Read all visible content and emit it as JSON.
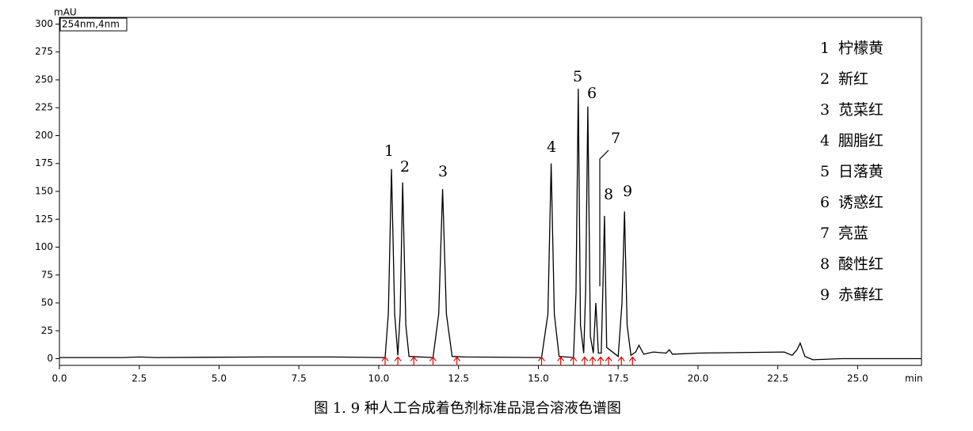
{
  "chart_data": {
    "type": "line",
    "y_unit": "mAU",
    "x_unit": "min",
    "detector": "254nm,4nm",
    "caption": "图 1.   9 种人工合成着色剂标准品混合溶液色谱图",
    "color": "#000000",
    "x": [
      0,
      2,
      2.5,
      3,
      6.5,
      7.5,
      8.5,
      10.2,
      10.3,
      10.4,
      10.5,
      10.6,
      10.67,
      10.75,
      10.85,
      10.95,
      11.7,
      11.88,
      12.0,
      12.12,
      12.3,
      12.7,
      15.1,
      15.3,
      15.4,
      15.5,
      15.65,
      16.1,
      16.18,
      16.25,
      16.32,
      16.42,
      16.48,
      16.55,
      16.63,
      16.72,
      16.8,
      16.88,
      16.97,
      17.02,
      17.07,
      17.14,
      17.5,
      17.62,
      17.7,
      17.78,
      17.9,
      18.05,
      18.15,
      18.3,
      18.6,
      19.0,
      19.1,
      19.2,
      20.0,
      22.7,
      22.95,
      23.1,
      23.2,
      23.35,
      23.6,
      24.5,
      27
    ],
    "values": [
      1,
      1,
      1.5,
      1,
      1.5,
      1.5,
      1.5,
      1,
      40,
      170,
      40,
      3,
      40,
      158,
      30,
      2,
      1,
      40,
      152,
      40,
      2,
      1.5,
      1,
      40,
      175,
      40,
      2,
      1,
      60,
      242,
      30,
      5,
      60,
      226,
      20,
      5,
      50,
      5,
      5,
      60,
      128,
      10,
      2,
      50,
      132,
      30,
      3,
      6,
      12,
      4,
      6,
      5,
      8,
      4,
      5,
      6,
      3,
      8,
      14,
      2,
      -1,
      0,
      0
    ],
    "xlim": [
      0,
      27
    ],
    "ylim": [
      -6,
      306
    ],
    "xticks": [
      {
        "value": 0,
        "label": "0.0"
      },
      2.5,
      {
        "value": 5,
        "label": "5.0"
      },
      7.5,
      {
        "value": 10,
        "label": "10.0"
      },
      12.5,
      {
        "value": 15,
        "label": "15.0"
      },
      17.5,
      {
        "value": 20,
        "label": "20.0"
      },
      22.5,
      {
        "value": 25,
        "label": "25.0"
      }
    ],
    "yticks": [
      0,
      25,
      50,
      75,
      100,
      125,
      150,
      175,
      200,
      225,
      250,
      275,
      300
    ],
    "integration_marks": [
      10.2,
      10.6,
      11.1,
      11.7,
      12.45,
      15.1,
      15.7,
      16.1,
      16.45,
      16.7,
      16.95,
      17.2,
      17.6,
      17.95
    ],
    "legend": [
      {
        "number": "1",
        "name": "柠檬黄"
      },
      {
        "number": "2",
        "name": "新红"
      },
      {
        "number": "3",
        "name": "苋菜红"
      },
      {
        "number": "4",
        "name": "胭脂红"
      },
      {
        "number": "5",
        "name": "日落黄"
      },
      {
        "number": "6",
        "name": "诱惑红"
      },
      {
        "number": "7",
        "name": "亮蓝"
      },
      {
        "number": "8",
        "name": "酸性红"
      },
      {
        "number": "9",
        "name": "赤藓红"
      }
    ]
  }
}
